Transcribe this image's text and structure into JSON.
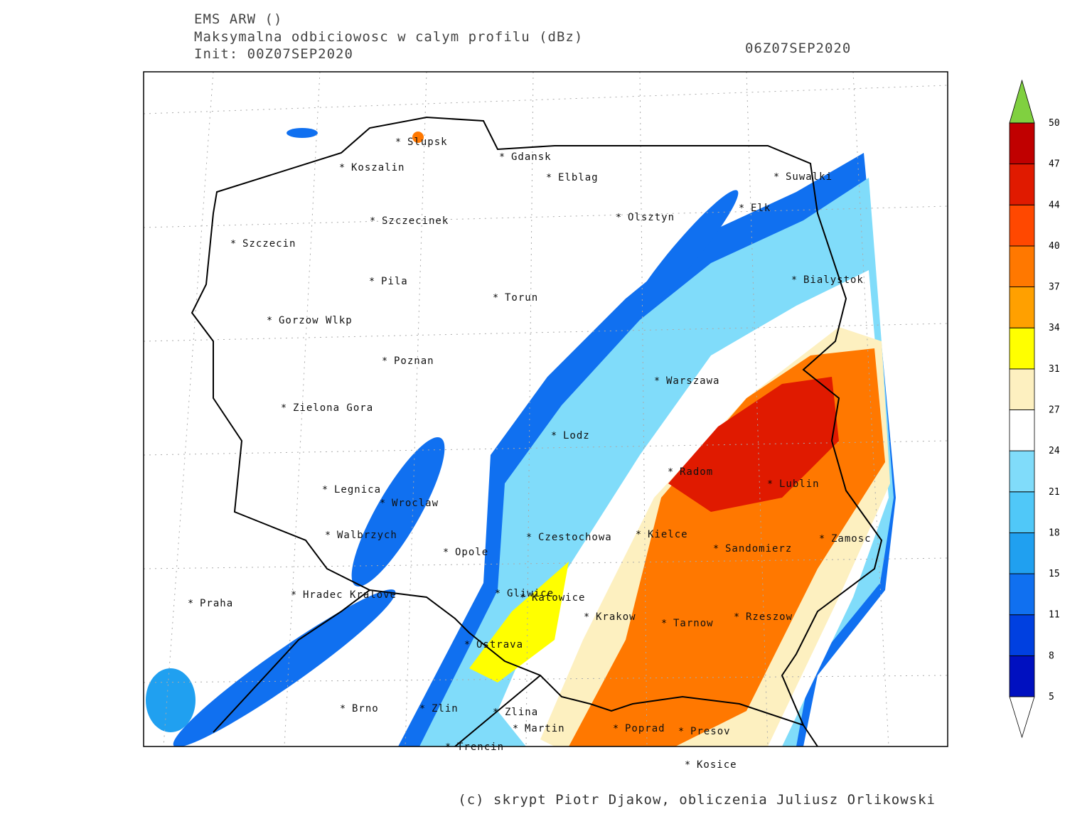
{
  "header": {
    "title": "EMS ARW ()",
    "subtitle": "Maksymalna odbiciowosc w calym profilu (dBz)",
    "init": "Init: 00Z07SEP2020",
    "valid": "06Z07SEP2020"
  },
  "cities": [
    "Slupsk",
    "Gdansk",
    "Koszalin",
    "Elblag",
    "Suwalki",
    "Elk",
    "Olsztyn",
    "Szczecinek",
    "Szczecin",
    "Bialystok",
    "Pila",
    "Torun",
    "Gorzow Wlkp",
    "Poznan",
    "Warszawa",
    "Zielona Gora",
    "Lodz",
    "Radom",
    "Lublin",
    "Legnica",
    "Wroclaw",
    "Kielce",
    "Czestochowa",
    "Walbrzych",
    "Zamosc",
    "Sandomierz",
    "Opole",
    "Hradec Kralove",
    "Gliwice",
    "Katowice",
    "Praha",
    "Krakow",
    "Rzeszow",
    "Tarnow",
    "Ostrava",
    "Brno",
    "Zlin",
    "Zlina",
    "Martin",
    "Poprad",
    "Presov",
    "Trencin",
    "Kosice"
  ],
  "colorbar": {
    "levels": [
      5,
      8,
      11,
      15,
      18,
      21,
      24,
      27,
      31,
      34,
      37,
      40,
      44,
      47,
      50
    ],
    "colors": [
      "#0010c0",
      "#0040e0",
      "#1070f0",
      "#20a0f0",
      "#50c8f8",
      "#80dcfa",
      "#ffffff",
      "#fdf0c0",
      "#ffff00",
      "#ffa000",
      "#ff7800",
      "#ff4800",
      "#e01a00",
      "#c00000"
    ],
    "below_color": "#ffffff",
    "above_color": "#80d040"
  },
  "footer": "(c) skrypt Piotr Djakow, obliczenia Juliusz Orlikowski"
}
